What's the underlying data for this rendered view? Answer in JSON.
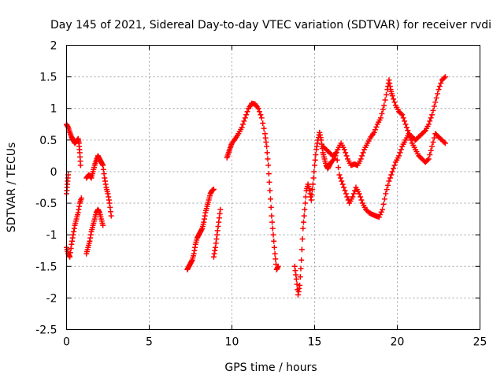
{
  "chart_data": {
    "type": "scatter",
    "title": "Day 145 of 2021, Sidereal Day-to-day VTEC variation (SDTVAR) for receiver rvdi",
    "xlabel": "GPS time / hours",
    "ylabel": "SDTVAR / TECUs",
    "xlim": [
      0,
      25
    ],
    "ylim": [
      -2.5,
      2
    ],
    "xticks": [
      "0",
      "5",
      "10",
      "15",
      "20",
      "25"
    ],
    "yticks": [
      "2",
      "1.5",
      "1",
      "0.5",
      "0",
      "-0.5",
      "-1",
      "-1.5",
      "-2",
      "-2.5"
    ],
    "grid": true,
    "marker": "plus",
    "color": "#ff0000",
    "series": [
      {
        "segments": [
          [
            [
              0.0,
              0.75
            ],
            [
              0.1,
              0.7
            ],
            [
              0.2,
              0.62
            ],
            [
              0.3,
              0.55
            ],
            [
              0.4,
              0.5
            ],
            [
              0.5,
              0.45
            ],
            [
              0.6,
              0.48
            ],
            [
              0.7,
              0.52
            ],
            [
              0.75,
              0.45
            ],
            [
              0.8,
              0.3
            ],
            [
              0.85,
              0.1
            ]
          ],
          [
            [
              0.0,
              -0.35
            ],
            [
              0.05,
              -0.2
            ],
            [
              0.1,
              -0.05
            ]
          ],
          [
            [
              1.2,
              -0.1
            ],
            [
              1.35,
              -0.05
            ],
            [
              1.5,
              -0.1
            ],
            [
              1.6,
              0.0
            ],
            [
              1.7,
              0.1
            ],
            [
              1.8,
              0.18
            ],
            [
              1.9,
              0.25
            ],
            [
              2.0,
              0.2
            ],
            [
              2.1,
              0.15
            ],
            [
              2.2,
              0.1
            ],
            [
              2.3,
              -0.1
            ],
            [
              2.4,
              -0.25
            ],
            [
              2.5,
              -0.35
            ],
            [
              2.6,
              -0.5
            ],
            [
              2.7,
              -0.7
            ]
          ],
          [
            [
              0.0,
              -1.2
            ],
            [
              0.1,
              -1.3
            ],
            [
              0.2,
              -1.35
            ],
            [
              0.3,
              -1.15
            ],
            [
              0.4,
              -1.0
            ],
            [
              0.5,
              -0.85
            ],
            [
              0.6,
              -0.75
            ],
            [
              0.7,
              -0.65
            ],
            [
              0.8,
              -0.5
            ],
            [
              0.9,
              -0.42
            ]
          ],
          [
            [
              1.2,
              -1.3
            ],
            [
              1.3,
              -1.2
            ],
            [
              1.4,
              -1.1
            ],
            [
              1.5,
              -0.95
            ],
            [
              1.6,
              -0.85
            ],
            [
              1.7,
              -0.75
            ],
            [
              1.8,
              -0.65
            ],
            [
              1.9,
              -0.6
            ],
            [
              2.0,
              -0.65
            ],
            [
              2.1,
              -0.75
            ],
            [
              2.2,
              -0.85
            ]
          ],
          [
            [
              7.3,
              -1.55
            ],
            [
              7.4,
              -1.5
            ],
            [
              7.5,
              -1.45
            ],
            [
              7.6,
              -1.4
            ],
            [
              7.7,
              -1.3
            ],
            [
              7.8,
              -1.15
            ],
            [
              7.9,
              -1.05
            ],
            [
              8.0,
              -1.0
            ],
            [
              8.1,
              -0.95
            ],
            [
              8.2,
              -0.9
            ],
            [
              8.3,
              -0.8
            ],
            [
              8.4,
              -0.65
            ],
            [
              8.5,
              -0.55
            ],
            [
              8.6,
              -0.45
            ],
            [
              8.7,
              -0.35
            ],
            [
              8.8,
              -0.3
            ],
            [
              8.9,
              -0.28
            ]
          ],
          [
            [
              8.9,
              -1.35
            ],
            [
              9.0,
              -1.2
            ],
            [
              9.1,
              -1.0
            ],
            [
              9.2,
              -0.8
            ],
            [
              9.3,
              -0.6
            ]
          ],
          [
            [
              9.7,
              0.22
            ],
            [
              9.8,
              0.3
            ],
            [
              9.9,
              0.38
            ],
            [
              10.0,
              0.45
            ],
            [
              10.2,
              0.52
            ],
            [
              10.4,
              0.6
            ],
            [
              10.6,
              0.7
            ],
            [
              10.8,
              0.85
            ],
            [
              11.0,
              1.0
            ],
            [
              11.2,
              1.08
            ],
            [
              11.4,
              1.07
            ],
            [
              11.6,
              1.0
            ],
            [
              11.8,
              0.85
            ],
            [
              12.0,
              0.6
            ],
            [
              12.1,
              0.4
            ],
            [
              12.2,
              0.1
            ],
            [
              12.3,
              -0.3
            ],
            [
              12.4,
              -0.7
            ],
            [
              12.5,
              -1.0
            ],
            [
              12.6,
              -1.3
            ],
            [
              12.7,
              -1.55
            ],
            [
              12.8,
              -1.5
            ]
          ],
          [
            [
              13.8,
              -1.5
            ],
            [
              13.9,
              -1.7
            ],
            [
              14.0,
              -1.95
            ],
            [
              14.1,
              -1.8
            ],
            [
              14.2,
              -1.4
            ],
            [
              14.3,
              -0.9
            ],
            [
              14.4,
              -0.6
            ],
            [
              14.5,
              -0.3
            ],
            [
              14.6,
              -0.2
            ],
            [
              14.7,
              -0.3
            ],
            [
              14.8,
              -0.45
            ],
            [
              14.9,
              -0.2
            ],
            [
              15.0,
              0.1
            ],
            [
              15.1,
              0.35
            ],
            [
              15.2,
              0.5
            ],
            [
              15.3,
              0.62
            ],
            [
              15.4,
              0.5
            ],
            [
              15.5,
              0.3
            ],
            [
              15.6,
              0.2
            ],
            [
              15.7,
              0.1
            ],
            [
              15.8,
              0.05
            ],
            [
              15.9,
              0.1
            ],
            [
              16.0,
              0.15
            ],
            [
              16.2,
              0.2
            ],
            [
              16.4,
              0.35
            ],
            [
              16.6,
              0.45
            ],
            [
              16.8,
              0.35
            ],
            [
              17.0,
              0.2
            ],
            [
              17.2,
              0.1
            ],
            [
              17.4,
              0.12
            ],
            [
              17.6,
              0.1
            ],
            [
              17.8,
              0.2
            ],
            [
              18.0,
              0.35
            ],
            [
              18.2,
              0.45
            ],
            [
              18.4,
              0.55
            ],
            [
              18.6,
              0.62
            ],
            [
              18.8,
              0.75
            ],
            [
              19.0,
              0.85
            ],
            [
              19.2,
              1.05
            ],
            [
              19.4,
              1.3
            ],
            [
              19.5,
              1.45
            ],
            [
              19.6,
              1.3
            ],
            [
              19.7,
              1.2
            ],
            [
              19.9,
              1.05
            ],
            [
              20.1,
              0.95
            ],
            [
              20.3,
              0.9
            ],
            [
              20.5,
              0.75
            ],
            [
              20.7,
              0.6
            ],
            [
              20.9,
              0.45
            ],
            [
              21.1,
              0.35
            ],
            [
              21.3,
              0.25
            ],
            [
              21.5,
              0.2
            ],
            [
              21.7,
              0.15
            ],
            [
              21.9,
              0.2
            ],
            [
              22.1,
              0.4
            ],
            [
              22.3,
              0.6
            ],
            [
              22.5,
              0.55
            ],
            [
              22.7,
              0.5
            ],
            [
              22.9,
              0.45
            ]
          ],
          [
            [
              15.5,
              0.4
            ],
            [
              15.7,
              0.35
            ],
            [
              15.9,
              0.3
            ],
            [
              16.1,
              0.25
            ],
            [
              16.3,
              0.3
            ],
            [
              16.5,
              -0.05
            ],
            [
              16.7,
              -0.2
            ],
            [
              16.9,
              -0.35
            ],
            [
              17.1,
              -0.5
            ],
            [
              17.3,
              -0.4
            ],
            [
              17.5,
              -0.25
            ],
            [
              17.7,
              -0.35
            ],
            [
              17.9,
              -0.5
            ],
            [
              18.1,
              -0.6
            ],
            [
              18.3,
              -0.65
            ],
            [
              18.5,
              -0.68
            ],
            [
              18.7,
              -0.7
            ],
            [
              18.9,
              -0.72
            ],
            [
              19.1,
              -0.6
            ],
            [
              19.3,
              -0.35
            ],
            [
              19.5,
              -0.15
            ],
            [
              19.7,
              0.0
            ],
            [
              19.9,
              0.15
            ],
            [
              20.1,
              0.25
            ],
            [
              20.3,
              0.4
            ],
            [
              20.5,
              0.5
            ],
            [
              20.7,
              0.6
            ],
            [
              20.9,
              0.55
            ],
            [
              21.1,
              0.5
            ],
            [
              21.3,
              0.55
            ],
            [
              21.5,
              0.6
            ],
            [
              21.7,
              0.65
            ],
            [
              21.9,
              0.75
            ],
            [
              22.1,
              0.9
            ],
            [
              22.3,
              1.1
            ],
            [
              22.5,
              1.3
            ],
            [
              22.7,
              1.45
            ],
            [
              22.9,
              1.5
            ]
          ]
        ]
      }
    ]
  }
}
